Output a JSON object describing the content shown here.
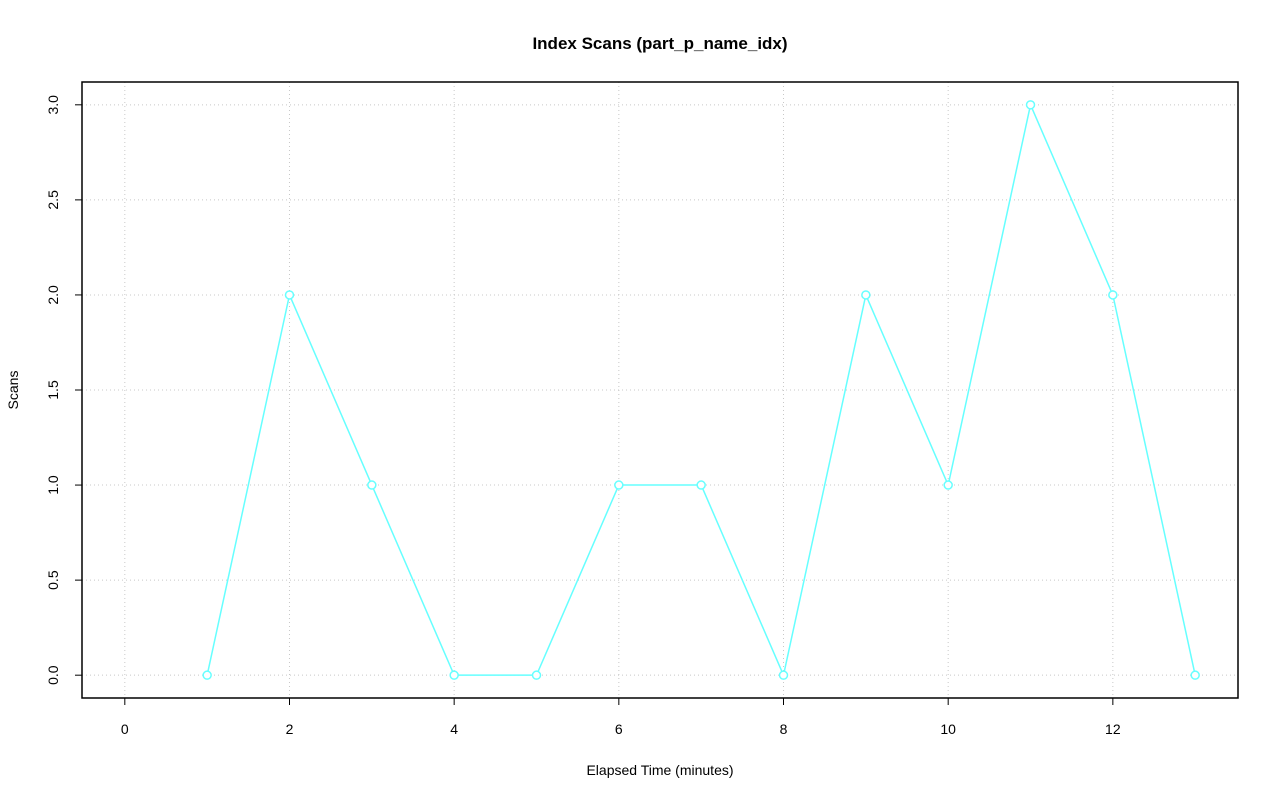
{
  "chart_data": {
    "type": "line",
    "title": "Index Scans (part_p_name_idx)",
    "x_label": "Elapsed Time (minutes)",
    "y_label": "Scans",
    "x": [
      1,
      2,
      3,
      4,
      5,
      6,
      7,
      8,
      9,
      10,
      11,
      12,
      13
    ],
    "series": [
      {
        "color": "#66ffff",
        "values": [
          0,
          2,
          1,
          0,
          0,
          1,
          1,
          0,
          2,
          1,
          3,
          2,
          0
        ]
      }
    ],
    "xlim": [
      -0.52,
      13.52
    ],
    "xticks": [
      0,
      2,
      4,
      6,
      8,
      10,
      12
    ],
    "ylim": [
      -0.12,
      3.12
    ],
    "yticks": [
      {
        "value": 0,
        "label": "0.0"
      },
      {
        "value": 0.5,
        "label": "0.5"
      },
      {
        "value": 1,
        "label": "1.0"
      },
      {
        "value": 1.5,
        "label": "1.5"
      },
      {
        "value": 2,
        "label": "2.0"
      },
      {
        "value": 2.5,
        "label": "2.5"
      },
      {
        "value": 3,
        "label": "3.0"
      }
    ],
    "grid": true
  }
}
